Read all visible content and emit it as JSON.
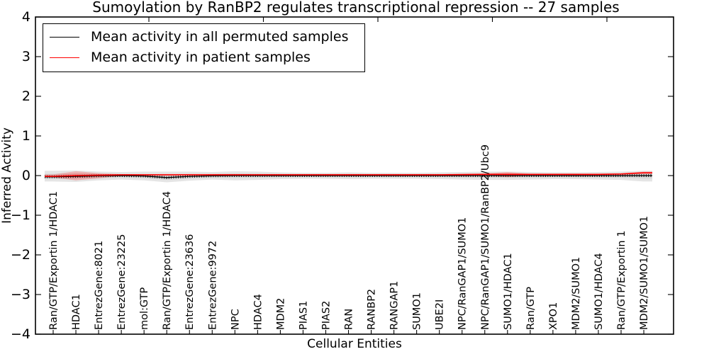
{
  "chart_data": {
    "type": "line",
    "title": "Sumoylation by RanBP2 regulates transcriptional repression -- 27 samples",
    "xlabel": "Cellular Entities",
    "ylabel": "Inferred Activity",
    "ylim": [
      -4,
      4
    ],
    "yticks": [
      4,
      3,
      2,
      1,
      0,
      -1,
      -2,
      -3,
      -4
    ],
    "ytick_labels": [
      "4",
      "3",
      "2",
      "1",
      "0",
      "−1",
      "−2",
      "−3",
      "−4"
    ],
    "grid": false,
    "legend_position": "upper left",
    "categories": [
      "Ran/GTP/Exportin 1/HDAC1",
      "HDAC1",
      "EntrezGene:8021",
      "EntrezGene:23225",
      "mol:GTP",
      "Ran/GTP/Exportin 1/HDAC4",
      "EntrezGene:23636",
      "EntrezGene:9972",
      "NPC",
      "HDAC4",
      "MDM2",
      "PIAS1",
      "PIAS2",
      "RAN",
      "RANBP2",
      "RANGAP1",
      "SUMO1",
      "UBE2I",
      "NPC/RanGAP1/SUMO1",
      "NPC/RanGAP1/SUMO1/RanBP2/Ubc9",
      "SUMO1/HDAC1",
      "Ran/GTP",
      "XPO1",
      "MDM2/SUMO1",
      "SUMO1/HDAC4",
      "Ran/GTP/Exportin 1",
      "MDM2/SUMO1/SUMO1"
    ],
    "series": [
      {
        "name": "Mean activity in all permuted samples",
        "color": "#000000",
        "style": "line-with-tick-markers",
        "values": [
          -0.03,
          -0.02,
          -0.005,
          0,
          -0.01,
          -0.05,
          -0.02,
          -0.005,
          0,
          0,
          0,
          0,
          0,
          0,
          0,
          0,
          0,
          0,
          0,
          0,
          0,
          0,
          0,
          0,
          0,
          0,
          0
        ]
      },
      {
        "name": "Mean activity in patient samples",
        "color": "#ff0000",
        "style": "line",
        "values": [
          -0.02,
          0,
          0.01,
          0.02,
          0.02,
          0.02,
          0.02,
          0.02,
          0.02,
          0.02,
          0.02,
          0.02,
          0.02,
          0.02,
          0.02,
          0.02,
          0.02,
          0.02,
          0.025,
          0.03,
          0.03,
          0.03,
          0.03,
          0.03,
          0.03,
          0.04,
          0.07
        ]
      }
    ],
    "bands": [
      {
        "series": "Mean activity in all permuted samples",
        "color": "#000000",
        "opacity": 0.1,
        "upper": [
          0.12,
          0.13,
          0.1,
          0.09,
          0.1,
          0.1,
          0.1,
          0.09,
          0.11,
          0.1,
          0.08,
          0.07,
          0.07,
          0.08,
          0.07,
          0.07,
          0.07,
          0.08,
          0.09,
          0.1,
          0.1,
          0.09,
          0.08,
          0.08,
          0.09,
          0.1,
          0.12
        ],
        "lower": [
          -0.15,
          -0.16,
          -0.12,
          -0.1,
          -0.12,
          -0.17,
          -0.13,
          -0.1,
          -0.12,
          -0.11,
          -0.09,
          -0.08,
          -0.08,
          -0.09,
          -0.08,
          -0.08,
          -0.08,
          -0.09,
          -0.1,
          -0.11,
          -0.11,
          -0.1,
          -0.09,
          -0.09,
          -0.1,
          -0.11,
          -0.15
        ]
      },
      {
        "series": "Mean activity in patient samples",
        "color": "#ff0000",
        "opacity": 0.22,
        "upper": [
          0.03,
          0.11,
          0.06,
          0.035,
          0.035,
          0.04,
          0.04,
          0.04,
          0.04,
          0.04,
          0.04,
          0.04,
          0.04,
          0.04,
          0.04,
          0.04,
          0.04,
          0.04,
          0.045,
          0.055,
          0.09,
          0.05,
          0.05,
          0.05,
          0.05,
          0.06,
          0.1
        ],
        "lower": [
          -0.05,
          -0.12,
          -0.07,
          -0.01,
          -0.005,
          0,
          0,
          0,
          0,
          0,
          0,
          0,
          0,
          0,
          0,
          0,
          0,
          0,
          0.005,
          0.01,
          -0.04,
          0.01,
          0.01,
          0.01,
          0.01,
          0.02,
          0.04
        ]
      }
    ]
  }
}
